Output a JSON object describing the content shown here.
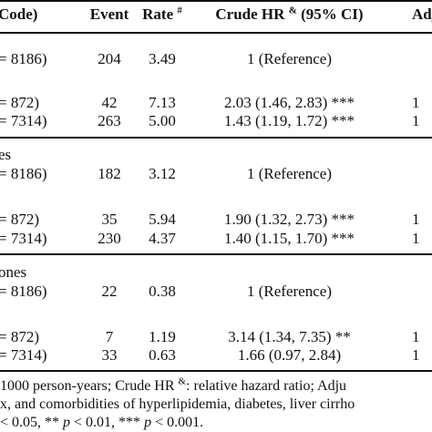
{
  "header": {
    "group": "Code)",
    "event": "Event",
    "rate": "Rate",
    "rate_sup": "#",
    "crude_hr": "Crude HR",
    "crude_sup": "&",
    "crude_ci": " (95% CI)",
    "adjusted": "Adj"
  },
  "rows": [
    {
      "label": "= 8186)",
      "event": "204",
      "rate": "3.49",
      "hr": "1 (Reference)",
      "adj": ""
    },
    {
      "label": "= 872)",
      "event": "42",
      "rate": "7.13",
      "hr": "2.03 (1.46, 2.83) ***",
      "adj": "1"
    },
    {
      "label": "= 7314)",
      "event": "263",
      "rate": "5.00",
      "hr": "1.43 (1.19, 1.72) ***",
      "adj": "1"
    },
    {
      "section": "es"
    },
    {
      "label": "= 8186)",
      "event": "182",
      "rate": "3.12",
      "hr": "1 (Reference)",
      "adj": ""
    },
    {
      "label": "= 872)",
      "event": "35",
      "rate": "5.94",
      "hr": "1.90 (1.32, 2.73) ***",
      "adj": "1"
    },
    {
      "label": "= 7314)",
      "event": "230",
      "rate": "4.37",
      "hr": "1.40 (1.15, 1.70) ***",
      "adj": "1"
    },
    {
      "section": "ones"
    },
    {
      "label": "= 8186)",
      "event": "22",
      "rate": "0.38",
      "hr": "1 (Reference)",
      "adj": ""
    },
    {
      "label": "= 872)",
      "event": "7",
      "rate": "1.19",
      "hr": "3.14 (1.34, 7.35) **",
      "adj": "1"
    },
    {
      "label": "= 7314)",
      "event": "33",
      "rate": "0.63",
      "hr": "1.66 (0.97, 2.84)",
      "adj": "1"
    }
  ],
  "footnotes": {
    "line1": "1000 person-years; Crude HR",
    "line1_sup": "&",
    "line1_rest": ": relative hazard ratio; Adju",
    "line2": "x, and comorbidities of hyperlipidemia, diabetes, liver cirrho",
    "line3": "< 0.05, ** p < 0.01, *** p < 0.001."
  }
}
